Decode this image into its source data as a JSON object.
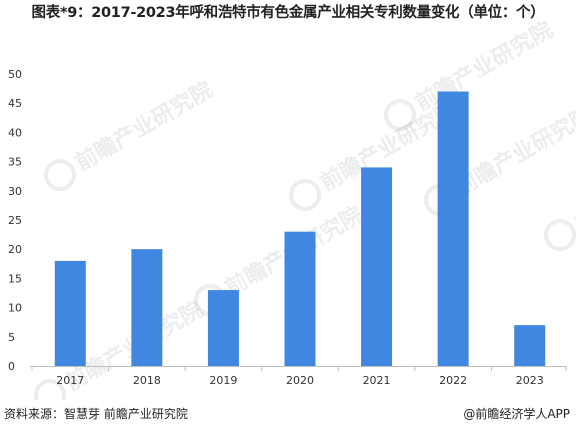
{
  "chart_data": {
    "type": "bar",
    "title": "图表*9：2017-2023年呼和浩特市有色金属产业相关专利数量变化（单位：个）",
    "categories": [
      "2017",
      "2018",
      "2019",
      "2020",
      "2021",
      "2022",
      "2023"
    ],
    "values": [
      18,
      20,
      13,
      23,
      34,
      47,
      7
    ],
    "ylim": [
      0,
      50
    ],
    "yticks": [
      0,
      5,
      10,
      15,
      20,
      25,
      30,
      35,
      40,
      45,
      50
    ],
    "xlabel": "",
    "ylabel": "",
    "grid": false,
    "legend": "none",
    "bar_color": "#3f87e0"
  },
  "footer": {
    "source": "资料来源：智慧芽 前瞻产业研究院",
    "credit": "@前瞻经济学人APP"
  },
  "watermark": "前瞻产业研究院"
}
